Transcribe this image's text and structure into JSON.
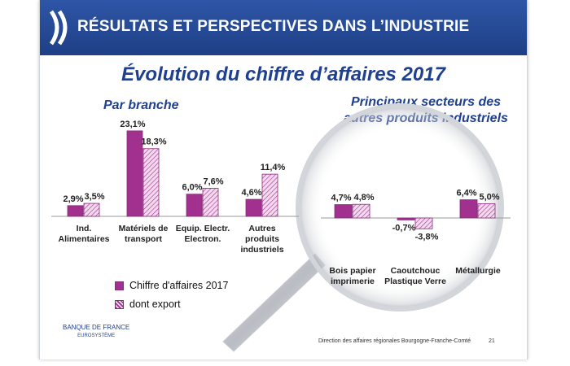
{
  "header": {
    "title": "RÉSULTATS ET PERSPECTIVES DANS L’INDUSTRIE"
  },
  "main_title": "Évolution du chiffre d’affaires 2017",
  "subtitles": {
    "left": "Par branche",
    "right": [
      "Principaux secteurs des",
      "autres produits industriels"
    ]
  },
  "legend": {
    "ca_label": "Chiffre d'affaires 2017",
    "export_label": "dont export"
  },
  "colors": {
    "header": "#1e3f86",
    "title": "#1f3f8f",
    "bar_solid": "#a2308f",
    "bar_hatch_line": "#a2308f",
    "bar_hatch_bg": "#f3d9ee"
  },
  "footer": {
    "logo_line1": "BANQUE DE FRANCE",
    "logo_line2": "EUROSYSTÈME",
    "text": "Direction des affaires régionales  Bourgogne-Franche-Comté",
    "page": "21"
  },
  "chart_data": [
    {
      "type": "bar",
      "title": "Par branche",
      "categories": [
        [
          "Ind.",
          "Alimentaires"
        ],
        [
          "Matériels de",
          "transport"
        ],
        [
          "Equip. Electr.",
          "Electron."
        ],
        [
          "Autres",
          "produits",
          "industriels"
        ]
      ],
      "series": [
        {
          "name": "Chiffre d'affaires 2017",
          "values": [
            2.9,
            23.1,
            6.0,
            4.6
          ],
          "labels": [
            "2,9%",
            "23,1%",
            "6,0%",
            "4,6%"
          ]
        },
        {
          "name": "dont export",
          "values": [
            3.5,
            18.3,
            7.6,
            11.4
          ],
          "labels": [
            "3,5%",
            "18,3%",
            "7,6%",
            "11,4%"
          ]
        }
      ],
      "ylim": [
        0,
        25
      ],
      "grid": false
    },
    {
      "type": "bar",
      "title": "Principaux secteurs des autres produits industriels",
      "categories": [
        [
          "Bois papier",
          "imprimerie"
        ],
        [
          "Caoutchouc",
          "Plastique Verre"
        ],
        [
          "Métallurgie"
        ]
      ],
      "series": [
        {
          "name": "Chiffre d'affaires 2017",
          "values": [
            4.7,
            -0.7,
            6.4
          ],
          "labels": [
            "4,7%",
            "-0,7%",
            "6,4%"
          ]
        },
        {
          "name": "dont export",
          "values": [
            4.8,
            -3.8,
            5.0
          ],
          "labels": [
            "4,8%",
            "-3,8%",
            "5,0%"
          ]
        }
      ],
      "ylim": [
        -4,
        7
      ],
      "grid": false
    }
  ]
}
